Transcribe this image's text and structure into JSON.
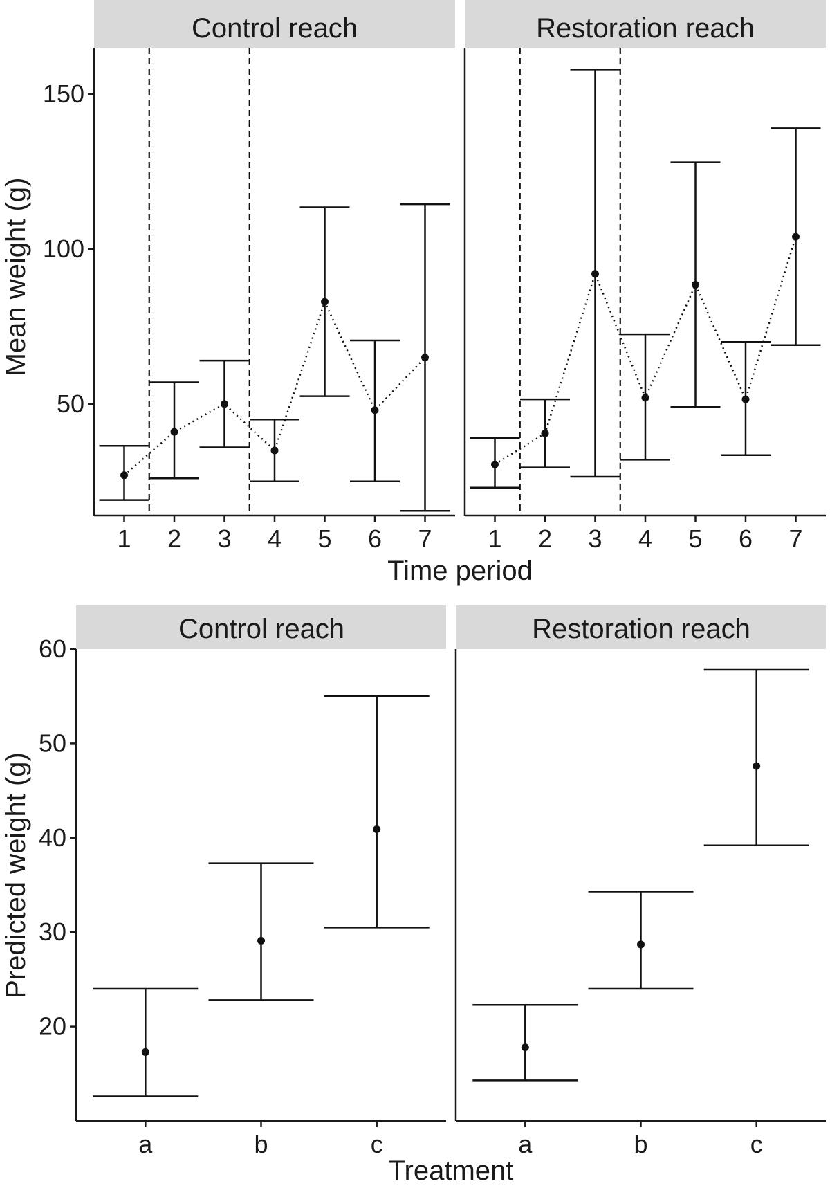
{
  "chart_data": [
    {
      "type": "scatter",
      "title": "",
      "xlabel": "Time period",
      "ylabel": "Mean weight (g)",
      "ylim": [
        14,
        165
      ],
      "yticks": [
        50,
        100,
        150
      ],
      "x_categories": [
        "1",
        "2",
        "3",
        "4",
        "5",
        "6",
        "7"
      ],
      "vlines": [
        1.5,
        3.5
      ],
      "connected": true,
      "grid": false,
      "panels": [
        {
          "name": "Control reach",
          "points": [
            {
              "x": "1",
              "y": 27,
              "ymin": 19,
              "ymax": 36.5
            },
            {
              "x": "2",
              "y": 41,
              "ymin": 26,
              "ymax": 57
            },
            {
              "x": "3",
              "y": 50,
              "ymin": 36,
              "ymax": 64
            },
            {
              "x": "4",
              "y": 35,
              "ymin": 25,
              "ymax": 45
            },
            {
              "x": "5",
              "y": 83,
              "ymin": 52.5,
              "ymax": 113.5
            },
            {
              "x": "6",
              "y": 48,
              "ymin": 25,
              "ymax": 70.5
            },
            {
              "x": "7",
              "y": 65,
              "ymin": 15.5,
              "ymax": 114.5
            }
          ]
        },
        {
          "name": "Restoration reach",
          "points": [
            {
              "x": "1",
              "y": 30.5,
              "ymin": 23,
              "ymax": 39
            },
            {
              "x": "2",
              "y": 40.5,
              "ymin": 29.5,
              "ymax": 51.5
            },
            {
              "x": "3",
              "y": 92,
              "ymin": 26.5,
              "ymax": 158
            },
            {
              "x": "4",
              "y": 52,
              "ymin": 32,
              "ymax": 72.5
            },
            {
              "x": "5",
              "y": 88.5,
              "ymin": 49,
              "ymax": 128
            },
            {
              "x": "6",
              "y": 51.5,
              "ymin": 33.5,
              "ymax": 70
            },
            {
              "x": "7",
              "y": 104,
              "ymin": 69,
              "ymax": 139
            }
          ]
        }
      ]
    },
    {
      "type": "scatter",
      "title": "",
      "xlabel": "Treatment",
      "ylabel": "Predicted weight (g)",
      "ylim": [
        10,
        60
      ],
      "yticks": [
        20,
        30,
        40,
        50,
        60
      ],
      "x_categories": [
        "a",
        "b",
        "c"
      ],
      "connected": false,
      "grid": false,
      "panels": [
        {
          "name": "Control reach",
          "points": [
            {
              "x": "a",
              "y": 17.3,
              "ymin": 12.6,
              "ymax": 24
            },
            {
              "x": "b",
              "y": 29.1,
              "ymin": 22.8,
              "ymax": 37.3
            },
            {
              "x": "c",
              "y": 40.9,
              "ymin": 30.5,
              "ymax": 55
            }
          ]
        },
        {
          "name": "Restoration reach",
          "points": [
            {
              "x": "a",
              "y": 17.8,
              "ymin": 14.3,
              "ymax": 22.3
            },
            {
              "x": "b",
              "y": 28.7,
              "ymin": 24,
              "ymax": 34.3
            },
            {
              "x": "c",
              "y": 47.6,
              "ymin": 39.2,
              "ymax": 57.8
            }
          ]
        }
      ]
    }
  ]
}
